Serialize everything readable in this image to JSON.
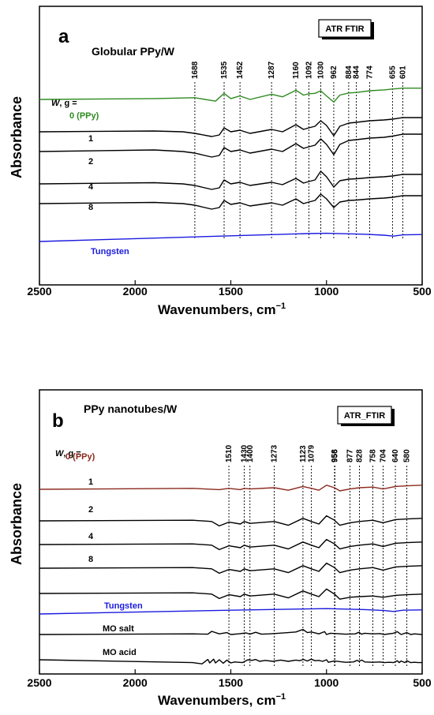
{
  "chart_data": [
    {
      "type": "line",
      "panel_label": "a",
      "title": "Globular PPy/W",
      "badge": "ATR FTIR",
      "xlabel": "Wavenumbers, cm",
      "xlabel_sup": "−1",
      "ylabel": "Absorbance",
      "xlim": [
        2500,
        500
      ],
      "xticks": [
        "2500",
        "2000",
        "1500",
        "1000",
        "500"
      ],
      "legend_header": "W, g =",
      "peaks": [
        "1688",
        "1535",
        "1452",
        "1287",
        "1160",
        "1092",
        "1030",
        "962",
        "884",
        "844",
        "774",
        "655",
        "601"
      ],
      "series": [
        {
          "name": "0 (PPy)",
          "color": "#2e8b20",
          "x": [
            2500,
            1900,
            1688,
            1580,
            1535,
            1500,
            1452,
            1400,
            1287,
            1230,
            1160,
            1120,
            1092,
            1060,
            1030,
            1000,
            962,
            930,
            884,
            844,
            774,
            700,
            655,
            601,
            500
          ],
          "y": [
            0.7,
            0.72,
            0.74,
            0.66,
            0.84,
            0.72,
            0.78,
            0.7,
            0.82,
            0.76,
            0.91,
            0.8,
            0.83,
            0.84,
            0.9,
            0.78,
            0.64,
            0.8,
            0.85,
            0.86,
            0.9,
            0.92,
            0.94,
            0.96,
            0.96
          ]
        },
        {
          "name": "1",
          "color": "#000000",
          "x": [
            2500,
            1900,
            1750,
            1688,
            1600,
            1560,
            1535,
            1500,
            1452,
            1400,
            1287,
            1230,
            1160,
            1120,
            1092,
            1060,
            1030,
            1000,
            962,
            930,
            884,
            844,
            774,
            700,
            655,
            601,
            500
          ],
          "y": [
            0.56,
            0.58,
            0.56,
            0.52,
            0.44,
            0.48,
            0.66,
            0.56,
            0.6,
            0.52,
            0.62,
            0.56,
            0.74,
            0.62,
            0.66,
            0.7,
            0.84,
            0.72,
            0.46,
            0.7,
            0.78,
            0.8,
            0.84,
            0.86,
            0.88,
            0.92,
            0.92
          ]
        },
        {
          "name": "2",
          "color": "#000000",
          "x": [
            2500,
            1900,
            1750,
            1688,
            1600,
            1560,
            1535,
            1500,
            1452,
            1400,
            1287,
            1230,
            1160,
            1120,
            1092,
            1060,
            1030,
            1000,
            962,
            930,
            884,
            844,
            774,
            700,
            655,
            601,
            500
          ],
          "y": [
            0.44,
            0.48,
            0.44,
            0.4,
            0.3,
            0.34,
            0.54,
            0.44,
            0.48,
            0.4,
            0.5,
            0.44,
            0.64,
            0.52,
            0.56,
            0.6,
            0.76,
            0.62,
            0.36,
            0.62,
            0.72,
            0.74,
            0.78,
            0.8,
            0.83,
            0.88,
            0.88
          ]
        },
        {
          "name": "4",
          "color": "#000000",
          "x": [
            2500,
            1900,
            1750,
            1688,
            1600,
            1560,
            1535,
            1500,
            1452,
            1400,
            1287,
            1230,
            1160,
            1120,
            1092,
            1060,
            1030,
            1000,
            962,
            930,
            884,
            844,
            774,
            700,
            655,
            601,
            500
          ],
          "y": [
            0.32,
            0.35,
            0.32,
            0.28,
            0.18,
            0.22,
            0.42,
            0.32,
            0.36,
            0.28,
            0.36,
            0.3,
            0.46,
            0.34,
            0.38,
            0.42,
            0.64,
            0.5,
            0.24,
            0.4,
            0.44,
            0.45,
            0.48,
            0.5,
            0.52,
            0.56,
            0.56
          ]
        },
        {
          "name": "8",
          "color": "#000000",
          "x": [
            2500,
            1900,
            1750,
            1688,
            1600,
            1560,
            1535,
            1500,
            1452,
            1400,
            1287,
            1230,
            1160,
            1120,
            1092,
            1060,
            1030,
            1000,
            962,
            930,
            884,
            844,
            774,
            700,
            655,
            601,
            500
          ],
          "y": [
            0.22,
            0.25,
            0.22,
            0.18,
            0.08,
            0.12,
            0.3,
            0.2,
            0.24,
            0.16,
            0.24,
            0.18,
            0.34,
            0.22,
            0.26,
            0.3,
            0.46,
            0.34,
            0.12,
            0.26,
            0.3,
            0.31,
            0.34,
            0.36,
            0.38,
            0.42,
            0.42
          ]
        },
        {
          "name": "Tungsten",
          "color": "#1a1adf",
          "x": [
            2500,
            2000,
            1500,
            1100,
            1000,
            800,
            700,
            650,
            600,
            500
          ],
          "y": [
            -0.25,
            -0.16,
            -0.07,
            0.0,
            0.01,
            -0.02,
            -0.05,
            -0.08,
            -0.04,
            -0.03
          ]
        }
      ]
    },
    {
      "type": "line",
      "panel_label": "b",
      "title": "PPy nanotubes/W",
      "badge": "ATR_FTIR",
      "xlabel": "Wavenumbers, cm",
      "xlabel_sup": "−1",
      "ylabel": "Absorbance",
      "xlim": [
        2500,
        500
      ],
      "xticks": [
        "2500",
        "2000",
        "1500",
        "1000",
        "500"
      ],
      "legend_header": "W, g =",
      "peaks": [
        "1510",
        "1430",
        "1400",
        "1273",
        "1123",
        "1079",
        "958",
        "956",
        "877",
        "828",
        "758",
        "704",
        "640",
        "580"
      ],
      "series": [
        {
          "name": "0 (PPy)",
          "color": "#8b2a1e",
          "x": [
            2500,
            1700,
            1560,
            1510,
            1450,
            1430,
            1400,
            1273,
            1200,
            1123,
            1079,
            1040,
            1000,
            958,
            930,
            877,
            828,
            758,
            704,
            640,
            580,
            500
          ],
          "y": [
            0.83,
            0.86,
            0.82,
            0.86,
            0.82,
            0.86,
            0.84,
            0.88,
            0.8,
            0.92,
            0.86,
            0.8,
            0.96,
            0.88,
            0.78,
            0.84,
            0.88,
            0.9,
            0.84,
            0.92,
            0.94,
            0.96
          ]
        },
        {
          "name": "1",
          "color": "#000000",
          "x": [
            2500,
            1700,
            1600,
            1560,
            1510,
            1450,
            1430,
            1400,
            1273,
            1200,
            1123,
            1079,
            1040,
            1000,
            958,
            930,
            877,
            828,
            758,
            704,
            640,
            580,
            500
          ],
          "y": [
            0.72,
            0.74,
            0.7,
            0.56,
            0.68,
            0.62,
            0.7,
            0.64,
            0.7,
            0.58,
            0.8,
            0.7,
            0.62,
            0.88,
            0.74,
            0.58,
            0.66,
            0.7,
            0.74,
            0.66,
            0.76,
            0.78,
            0.8
          ]
        },
        {
          "name": "2",
          "color": "#000000",
          "x": [
            2500,
            1700,
            1600,
            1560,
            1510,
            1450,
            1430,
            1400,
            1273,
            1200,
            1123,
            1079,
            1040,
            1000,
            958,
            930,
            877,
            828,
            758,
            704,
            640,
            580,
            500
          ],
          "y": [
            0.62,
            0.64,
            0.6,
            0.46,
            0.58,
            0.52,
            0.6,
            0.54,
            0.6,
            0.48,
            0.7,
            0.6,
            0.52,
            0.78,
            0.64,
            0.48,
            0.56,
            0.6,
            0.64,
            0.56,
            0.66,
            0.68,
            0.7
          ]
        },
        {
          "name": "4",
          "color": "#000000",
          "x": [
            2500,
            1700,
            1600,
            1560,
            1510,
            1450,
            1430,
            1400,
            1273,
            1200,
            1123,
            1079,
            1040,
            1000,
            958,
            930,
            877,
            828,
            758,
            704,
            640,
            580,
            500
          ],
          "y": [
            0.52,
            0.54,
            0.5,
            0.36,
            0.48,
            0.42,
            0.5,
            0.44,
            0.5,
            0.38,
            0.6,
            0.5,
            0.42,
            0.68,
            0.54,
            0.38,
            0.46,
            0.5,
            0.54,
            0.46,
            0.56,
            0.58,
            0.6
          ]
        },
        {
          "name": "8",
          "color": "#000000",
          "x": [
            2500,
            1700,
            1600,
            1560,
            1510,
            1450,
            1430,
            1400,
            1273,
            1200,
            1123,
            1079,
            1040,
            1000,
            958,
            930,
            877,
            828,
            758,
            704,
            640,
            580,
            500
          ],
          "y": [
            0.42,
            0.44,
            0.4,
            0.26,
            0.38,
            0.32,
            0.4,
            0.34,
            0.4,
            0.28,
            0.5,
            0.4,
            0.32,
            0.56,
            0.4,
            0.24,
            0.3,
            0.32,
            0.34,
            0.3,
            0.36,
            0.38,
            0.4
          ]
        },
        {
          "name": "Tungsten",
          "color": "#1a1adf",
          "x": [
            2500,
            2000,
            1500,
            1100,
            1000,
            800,
            700,
            650,
            600,
            500
          ],
          "y": [
            0.12,
            0.18,
            0.24,
            0.28,
            0.29,
            0.26,
            0.23,
            0.2,
            0.24,
            0.25
          ]
        },
        {
          "name": "MO salt",
          "color": "#000000",
          "x": [
            2500,
            1700,
            1620,
            1600,
            1560,
            1520,
            1500,
            1460,
            1420,
            1400,
            1370,
            1340,
            1300,
            1250,
            1200,
            1160,
            1123,
            1100,
            1079,
            1040,
            1010,
            1000,
            980,
            900,
            850,
            830,
            818,
            800,
            760,
            720,
            700,
            650,
            630,
            610,
            580,
            560,
            540,
            500
          ],
          "y": [
            0.06,
            0.08,
            0.07,
            0.16,
            0.08,
            0.12,
            0.06,
            0.08,
            0.11,
            0.07,
            0.13,
            0.07,
            0.08,
            0.1,
            0.12,
            0.14,
            0.22,
            0.12,
            0.14,
            0.08,
            0.15,
            0.06,
            0.1,
            0.07,
            0.08,
            0.13,
            0.07,
            0.1,
            0.08,
            0.09,
            0.06,
            0.1,
            0.15,
            0.06,
            0.12,
            0.06,
            0.08,
            0.06
          ]
        },
        {
          "name": "MO acid",
          "color": "#000000",
          "x": [
            2500,
            1700,
            1650,
            1620,
            1610,
            1590,
            1580,
            1560,
            1540,
            1520,
            1500,
            1480,
            1440,
            1410,
            1390,
            1370,
            1350,
            1320,
            1280,
            1240,
            1200,
            1160,
            1140,
            1120,
            1100,
            1080,
            1060,
            1040,
            1020,
            1000,
            990,
            960,
            900,
            860,
            840,
            830,
            815,
            800,
            760,
            720,
            700,
            670,
            650,
            630,
            620,
            610,
            590,
            580,
            560,
            540,
            520,
            500
          ],
          "y": [
            0.05,
            -0.04,
            -0.08,
            0.06,
            -0.05,
            0.07,
            -0.05,
            0.05,
            -0.06,
            0.04,
            -0.05,
            -0.02,
            -0.04,
            0.05,
            0.03,
            0.06,
            0.0,
            0.03,
            0.0,
            0.04,
            0.0,
            0.04,
            0.02,
            0.06,
            0.01,
            0.07,
            0.02,
            0.03,
            0.0,
            0.05,
            -0.03,
            0.01,
            -0.03,
            -0.02,
            0.03,
            0.0,
            0.04,
            -0.02,
            -0.03,
            -0.02,
            -0.04,
            -0.03,
            -0.04,
            0.02,
            -0.04,
            0.01,
            -0.04,
            0.02,
            -0.04,
            -0.03,
            -0.04,
            -0.04
          ]
        }
      ]
    }
  ]
}
